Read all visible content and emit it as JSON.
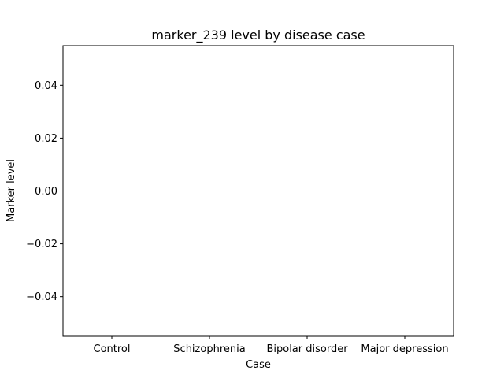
{
  "chart_data": {
    "type": "bar",
    "title": "marker_239 level by disease case",
    "xlabel": "Case",
    "ylabel": "Marker level",
    "categories": [
      "Control",
      "Schizophrenia",
      "Bipolar disorder",
      "Major depression"
    ],
    "values": [
      0,
      0,
      0,
      0
    ],
    "ylim": [
      -0.055,
      0.055
    ],
    "yticks": [
      -0.04,
      -0.02,
      0.0,
      0.02,
      0.04
    ],
    "ytick_labels": [
      "−0.04",
      "−0.02",
      "0.00",
      "0.02",
      "0.04"
    ],
    "grid": false,
    "legend": "none",
    "colors": {
      "axes": "#000000",
      "background": "#ffffff"
    }
  }
}
